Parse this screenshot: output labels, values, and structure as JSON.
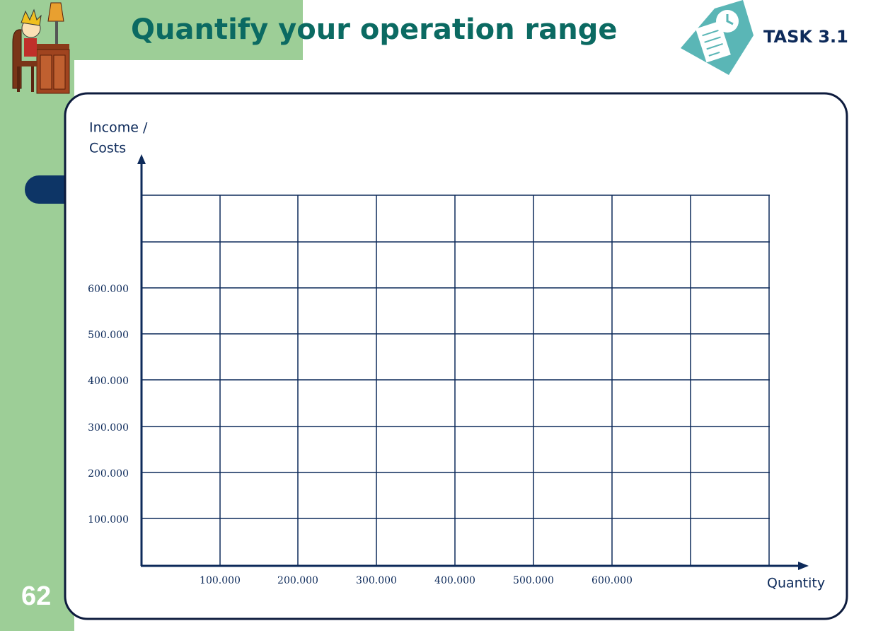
{
  "header": {
    "title": "Quantify your operation range",
    "task": "TASK 3.1"
  },
  "page_number": "62",
  "chart": {
    "y_label": [
      "Income /",
      "Costs"
    ],
    "x_label": "Quantity",
    "y_ticks": [
      "100.000",
      "200.000",
      "300.000",
      "400.000",
      "500.000",
      "600.000"
    ],
    "x_ticks": [
      "100.000",
      "200.000",
      "300.000",
      "400.000",
      "500.000",
      "600.000"
    ]
  }
}
